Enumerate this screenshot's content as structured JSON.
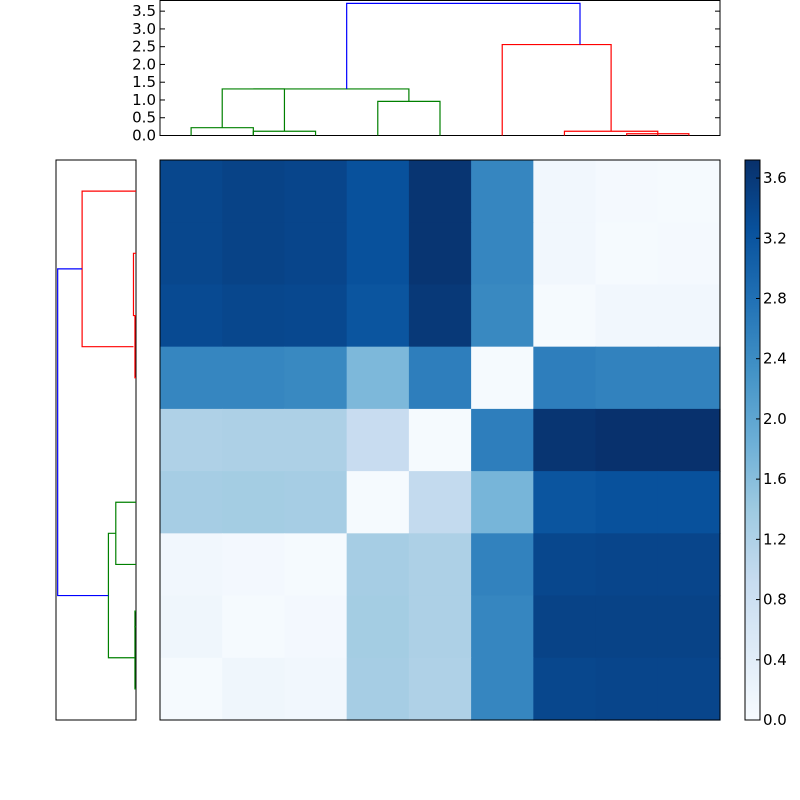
{
  "chart_data": [
    {
      "type": "dendrogram",
      "orientation": "top",
      "ylim": [
        0,
        3.8
      ],
      "yticks": [
        "0.0",
        "0.5",
        "1.0",
        "1.5",
        "2.0",
        "2.5",
        "3.0",
        "3.5"
      ],
      "link_colors": {
        "c1": "#008000",
        "c2": "#ff0000",
        "root": "#0000ff"
      },
      "leaf_order": [
        0,
        1,
        2,
        3,
        4,
        5,
        6,
        7,
        8
      ],
      "links": [
        {
          "xs": [
            0,
            0,
            1,
            1
          ],
          "ys": [
            0,
            0.22,
            0.22,
            0
          ],
          "c": "c1"
        },
        {
          "xs": [
            1,
            1,
            2,
            2
          ],
          "ys": [
            0,
            0.12,
            0.12,
            0
          ],
          "c": "c1"
        },
        {
          "xs": [
            0.5,
            0.5,
            1.5,
            1.5
          ],
          "ys": [
            0.22,
            1.31,
            1.31,
            0.12
          ],
          "c": "c1"
        },
        {
          "xs": [
            3,
            3,
            4,
            4
          ],
          "ys": [
            0,
            0.96,
            0.96,
            0
          ],
          "c": "c1"
        },
        {
          "xs": [
            1,
            1,
            3.5,
            3.5
          ],
          "ys": [
            1.31,
            1.31,
            1.31,
            0.96
          ],
          "c": "c1"
        },
        {
          "xs": [
            6,
            6,
            7.5,
            7.5
          ],
          "ys": [
            0,
            0.12,
            0.12,
            0
          ],
          "c": "c2"
        },
        {
          "xs": [
            7,
            7,
            8,
            8
          ],
          "ys": [
            0,
            0.05,
            0.05,
            0
          ],
          "c": "c2"
        },
        {
          "xs": [
            5,
            5,
            6.75,
            6.75
          ],
          "ys": [
            0,
            2.56,
            2.56,
            0.12
          ],
          "c": "c2"
        },
        {
          "xs": [
            2.5,
            2.5,
            6.25,
            6.25
          ],
          "ys": [
            1.31,
            3.72,
            3.72,
            2.56
          ],
          "c": "root"
        }
      ]
    },
    {
      "type": "dendrogram",
      "orientation": "left",
      "xlim": [
        0,
        3.8
      ],
      "link_colors": {
        "c1": "#008000",
        "c2": "#ff0000",
        "root": "#0000ff"
      },
      "links": [
        {
          "ys": [
            8,
            8,
            7,
            7
          ],
          "xs": [
            0,
            0.05,
            0.05,
            0
          ],
          "c": "c1"
        },
        {
          "ys": [
            7,
            7,
            6.75,
            6.75
          ],
          "xs": [
            0,
            0.05,
            0.05,
            0
          ],
          "c": "c1"
        },
        {
          "ys": [
            6,
            6,
            5,
            5
          ],
          "xs": [
            0,
            0.96,
            0.96,
            0
          ],
          "c": "c1"
        },
        {
          "ys": [
            7.5,
            7.5,
            5.5,
            5.5
          ],
          "xs": [
            0.05,
            1.31,
            1.31,
            0.96
          ],
          "c": "c1"
        },
        {
          "ys": [
            3,
            3,
            2,
            2
          ],
          "xs": [
            0,
            0.05,
            0.05,
            0
          ],
          "c": "c2"
        },
        {
          "ys": [
            2,
            2,
            1,
            1
          ],
          "xs": [
            0,
            0.12,
            0.12,
            0
          ],
          "c": "c2"
        },
        {
          "ys": [
            2.5,
            2.5,
            0,
            0
          ],
          "xs": [
            0.12,
            2.56,
            2.56,
            0
          ],
          "c": "c2"
        },
        {
          "ys": [
            6.5,
            6.5,
            1.25,
            1.25
          ],
          "xs": [
            1.31,
            3.72,
            3.72,
            2.56
          ],
          "c": "root"
        }
      ]
    },
    {
      "type": "heatmap",
      "colormap": "Blues",
      "vmin": 0,
      "vmax": 3.72,
      "matrix": [
        [
          3.4,
          3.45,
          3.42,
          3.25,
          3.65,
          2.5,
          0.12,
          0.06,
          0.04
        ],
        [
          3.4,
          3.45,
          3.42,
          3.25,
          3.65,
          2.5,
          0.12,
          0.04,
          0.06
        ],
        [
          3.35,
          3.4,
          3.38,
          3.2,
          3.6,
          2.45,
          0.04,
          0.12,
          0.12
        ],
        [
          2.5,
          2.5,
          2.45,
          1.7,
          2.6,
          0.04,
          2.6,
          2.55,
          2.55
        ],
        [
          1.2,
          1.22,
          1.22,
          0.9,
          0.04,
          2.6,
          3.65,
          3.7,
          3.7
        ],
        [
          1.3,
          1.32,
          1.3,
          0.04,
          0.96,
          1.75,
          3.2,
          3.25,
          3.25
        ],
        [
          0.12,
          0.08,
          0.04,
          1.3,
          1.22,
          2.55,
          3.4,
          3.42,
          3.42
        ],
        [
          0.15,
          0.04,
          0.08,
          1.32,
          1.22,
          2.5,
          3.45,
          3.45,
          3.45
        ],
        [
          0.04,
          0.15,
          0.12,
          1.3,
          1.2,
          2.5,
          3.4,
          3.42,
          3.42
        ]
      ]
    },
    {
      "type": "colorbar",
      "ticks": [
        "0.0",
        "0.4",
        "0.8",
        "1.2",
        "1.6",
        "2.0",
        "2.4",
        "2.8",
        "3.2",
        "3.6"
      ],
      "tick_values": [
        0.0,
        0.4,
        0.8,
        1.2,
        1.6,
        2.0,
        2.4,
        2.8,
        3.2,
        3.6
      ]
    }
  ]
}
